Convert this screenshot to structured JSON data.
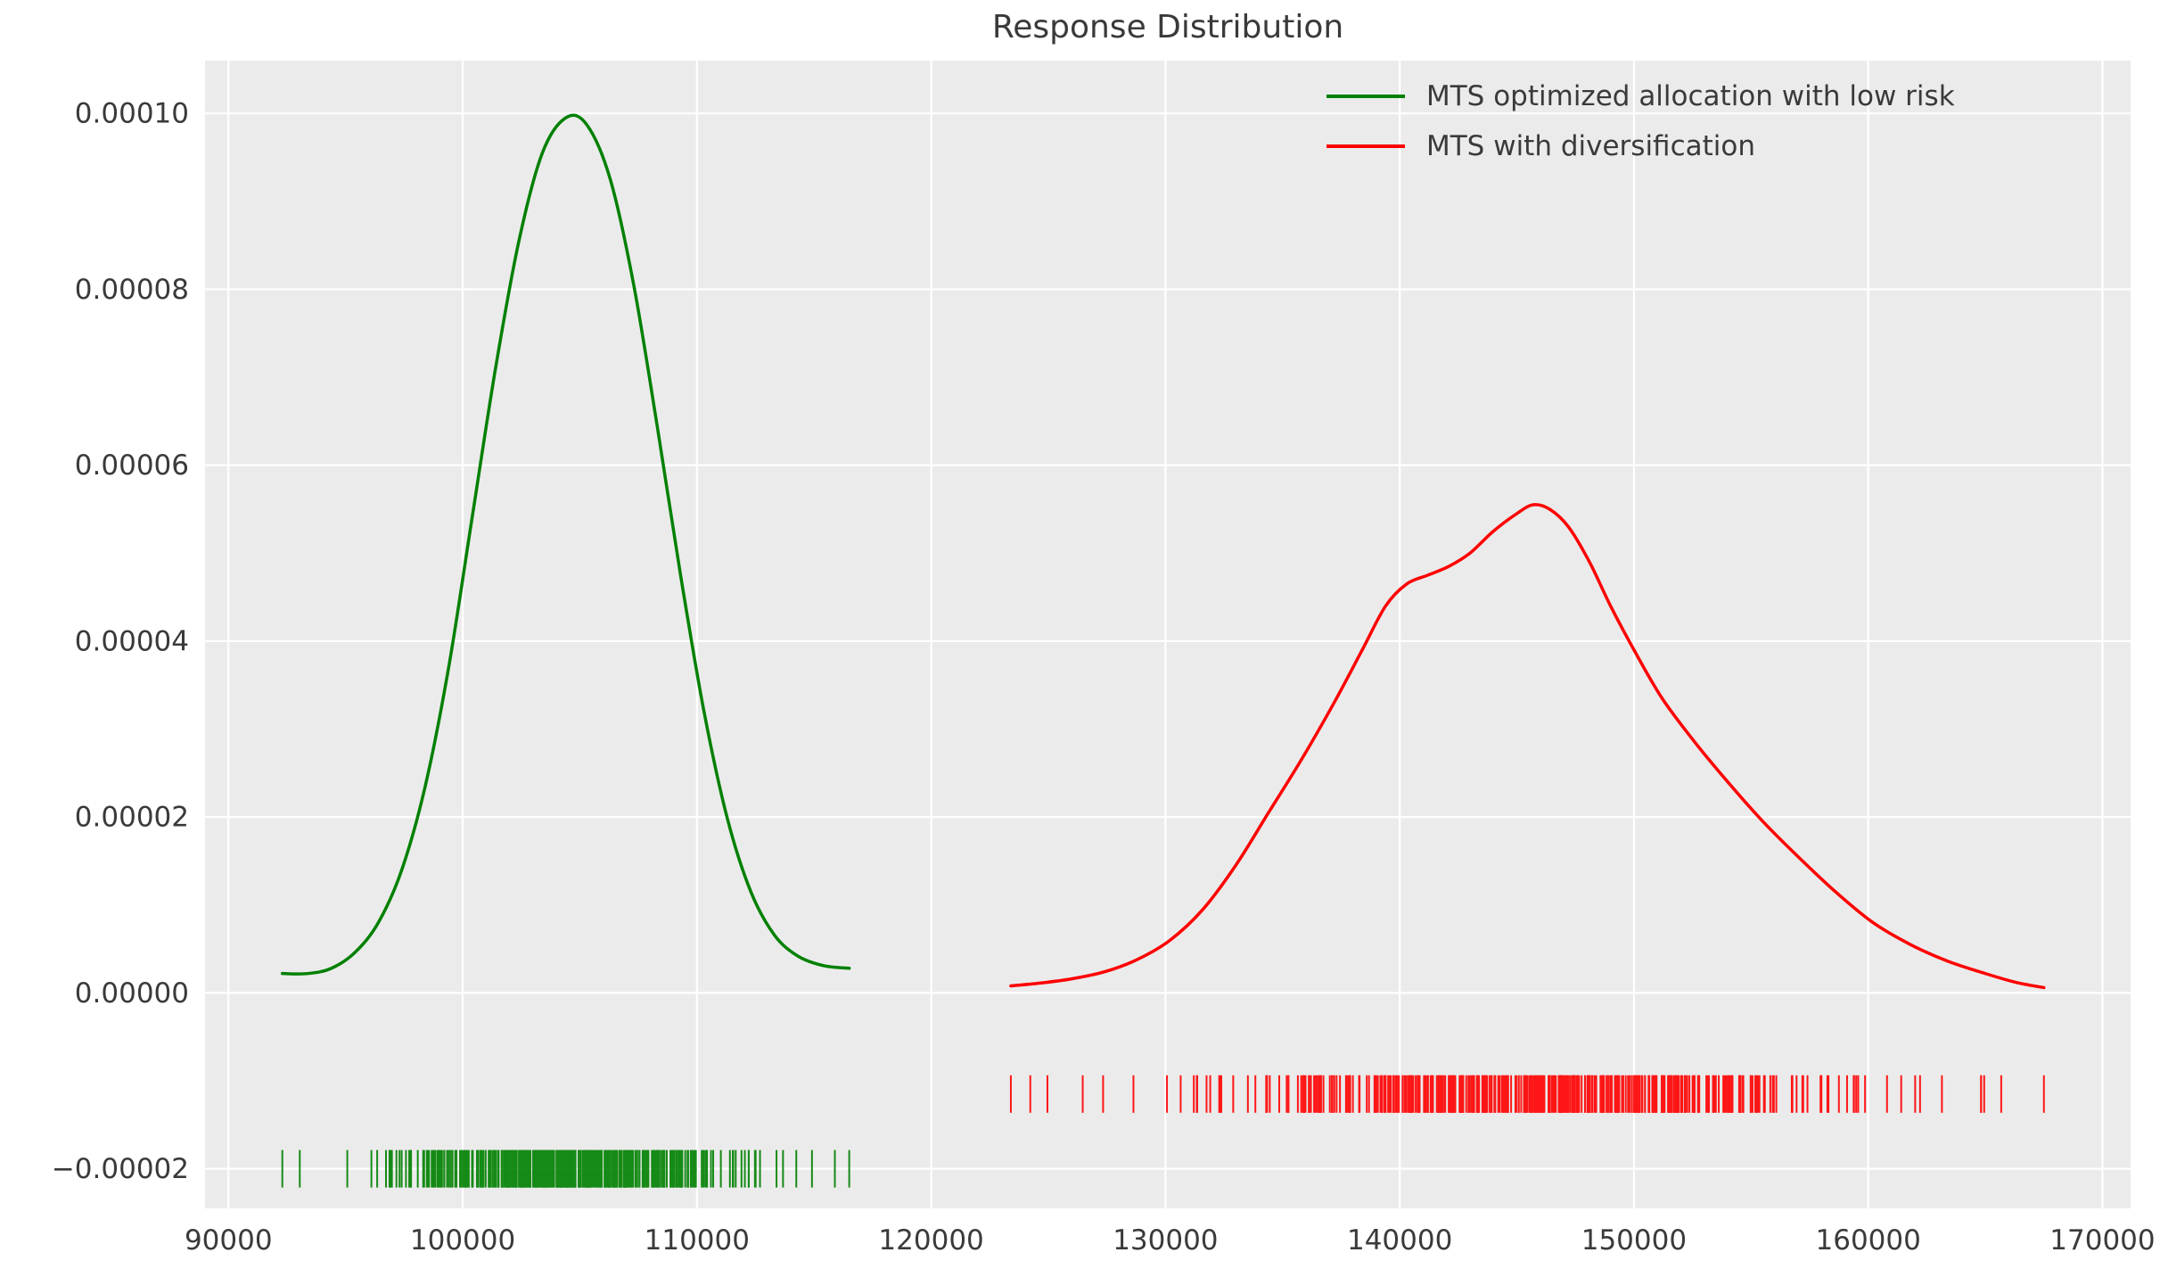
{
  "figure": {
    "background": "#ffffff",
    "plot_background": "#EBEBEB",
    "grid_color": "#ffffff",
    "text_color": "#3a3a3a"
  },
  "chart_data": {
    "type": "line",
    "subtype": "kde-with-rug",
    "title": "Response Distribution",
    "xlabel": "",
    "ylabel": "",
    "xlim": [
      89000,
      171200
    ],
    "ylim": [
      -2.45e-05,
      0.000106
    ],
    "grid": true,
    "legend_position": "upper right",
    "x_ticks": [
      90000,
      100000,
      110000,
      120000,
      130000,
      140000,
      150000,
      160000,
      170000
    ],
    "x_tick_labels": [
      "90000",
      "100000",
      "110000",
      "120000",
      "130000",
      "140000",
      "150000",
      "160000",
      "170000"
    ],
    "y_ticks": [
      -2e-05,
      0.0,
      2e-05,
      4e-05,
      6e-05,
      8e-05,
      0.0001
    ],
    "y_tick_labels": [
      "−0.00002",
      "0.00000",
      "0.00002",
      "0.00004",
      "0.00006",
      "0.00008",
      "0.00010"
    ],
    "series": [
      {
        "name": "MTS optimized allocation with low risk",
        "color": "#008000",
        "x": [
          92300,
          93400,
          94400,
          95400,
          96400,
          97400,
          98400,
          99400,
          100400,
          101400,
          102400,
          103400,
          104400,
          105300,
          106300,
          107300,
          108300,
          109300,
          110300,
          111300,
          112300,
          113300,
          114300,
          115400,
          116500
        ],
        "y": [
          2.2e-06,
          2.2e-06,
          2.8e-06,
          4.6e-06,
          8e-06,
          1.4e-05,
          2.35e-05,
          3.7e-05,
          5.4e-05,
          7.1e-05,
          8.55e-05,
          9.55e-05,
          9.95e-05,
          9.87e-05,
          9.25e-05,
          8.05e-05,
          6.45e-05,
          4.75e-05,
          3.2e-05,
          1.98e-05,
          1.15e-05,
          6.6e-06,
          4.2e-06,
          3.1e-06,
          2.8e-06
        ],
        "rug": {
          "y_center": -2e-05,
          "x_min": 92300,
          "x_max": 116500,
          "mean": 104700,
          "std": 3700,
          "count": 420,
          "seed": 7
        }
      },
      {
        "name": "MTS with diversification",
        "color": "#ff0000",
        "x": [
          123400,
          124600,
          126000,
          127400,
          128800,
          130200,
          131600,
          133000,
          134400,
          135800,
          137200,
          138400,
          139400,
          140300,
          141200,
          142100,
          143000,
          144000,
          145000,
          145700,
          146400,
          147200,
          148100,
          149000,
          150000,
          151200,
          152600,
          154000,
          155500,
          157000,
          158600,
          160200,
          161800,
          163400,
          165000,
          166300,
          167500
        ],
        "y": [
          8e-07,
          1.1e-06,
          1.6e-06,
          2.4e-06,
          3.8e-06,
          6e-06,
          9.5e-06,
          1.45e-05,
          2.05e-05,
          2.65e-05,
          3.3e-05,
          3.9e-05,
          4.4e-05,
          4.65e-05,
          4.75e-05,
          4.85e-05,
          5e-05,
          5.25e-05,
          5.45e-05,
          5.55e-05,
          5.5e-05,
          5.3e-05,
          4.9e-05,
          4.4e-05,
          3.9e-05,
          3.35e-05,
          2.85e-05,
          2.4e-05,
          1.95e-05,
          1.55e-05,
          1.15e-05,
          8e-06,
          5.5e-06,
          3.6e-06,
          2.2e-06,
          1.2e-06,
          6e-07
        ],
        "rug": {
          "y_center": -1.15e-05,
          "x_min": 123400,
          "x_max": 167500,
          "mean": 145300,
          "std": 7600,
          "count": 430,
          "seed": 13
        }
      }
    ]
  }
}
